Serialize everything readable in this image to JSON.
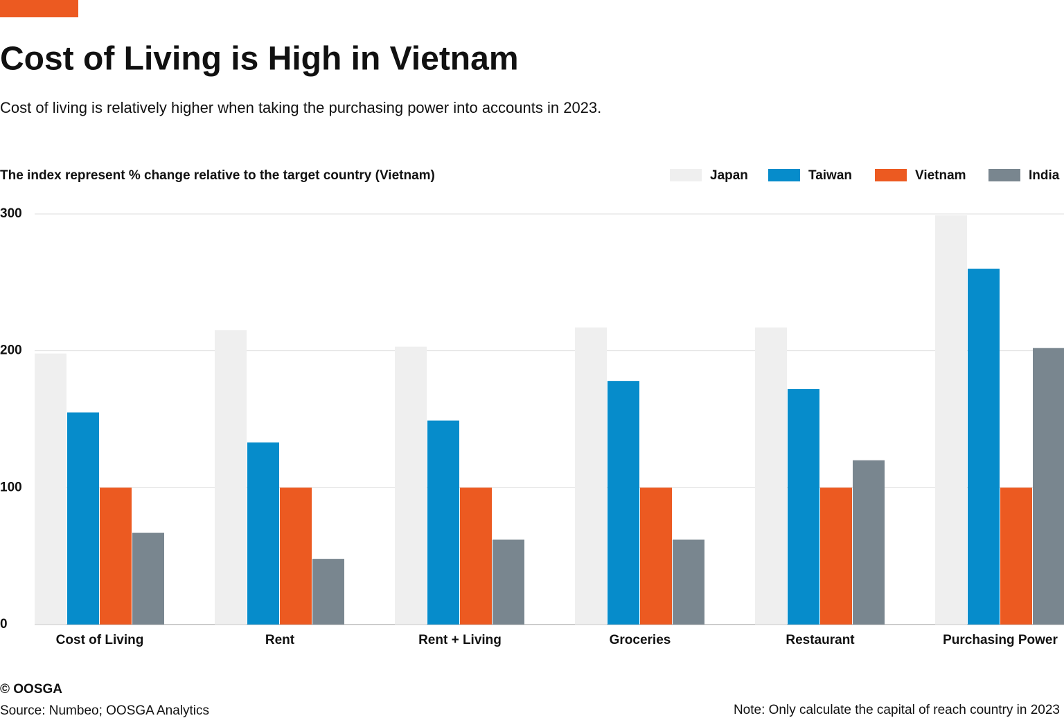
{
  "chart_data": {
    "type": "bar",
    "title": "Cost of Living is High in Vietnam",
    "subtitle": "Cost of living is relatively higher when taking the purchasing power into accounts in 2023.",
    "y_label": "The index represent % change relative to the target country (Vietnam)",
    "categories": [
      "Cost of Living",
      "Rent",
      "Rent + Living",
      "Groceries",
      "Restaurant",
      "Purchasing Power"
    ],
    "series": [
      {
        "name": "Japan",
        "color": "#efefef",
        "values": [
          198,
          215,
          203,
          217,
          217,
          299
        ]
      },
      {
        "name": "Taiwan",
        "color": "#068ccb",
        "values": [
          155,
          133,
          149,
          178,
          172,
          260
        ]
      },
      {
        "name": "Vietnam",
        "color": "#ec5a21",
        "values": [
          100,
          100,
          100,
          100,
          100,
          100
        ]
      },
      {
        "name": "India",
        "color": "#79868f",
        "values": [
          67,
          48,
          62,
          62,
          120,
          202
        ]
      }
    ],
    "ylim": [
      0,
      300
    ],
    "yticks": [
      0,
      100,
      200,
      300
    ],
    "grid": true,
    "legend": "top-right",
    "copyright": "© OOSGA",
    "source": "Source: Numbeo; OOSGA Analytics",
    "note": "Note:  Only calculate the capital of reach country in 2023"
  }
}
